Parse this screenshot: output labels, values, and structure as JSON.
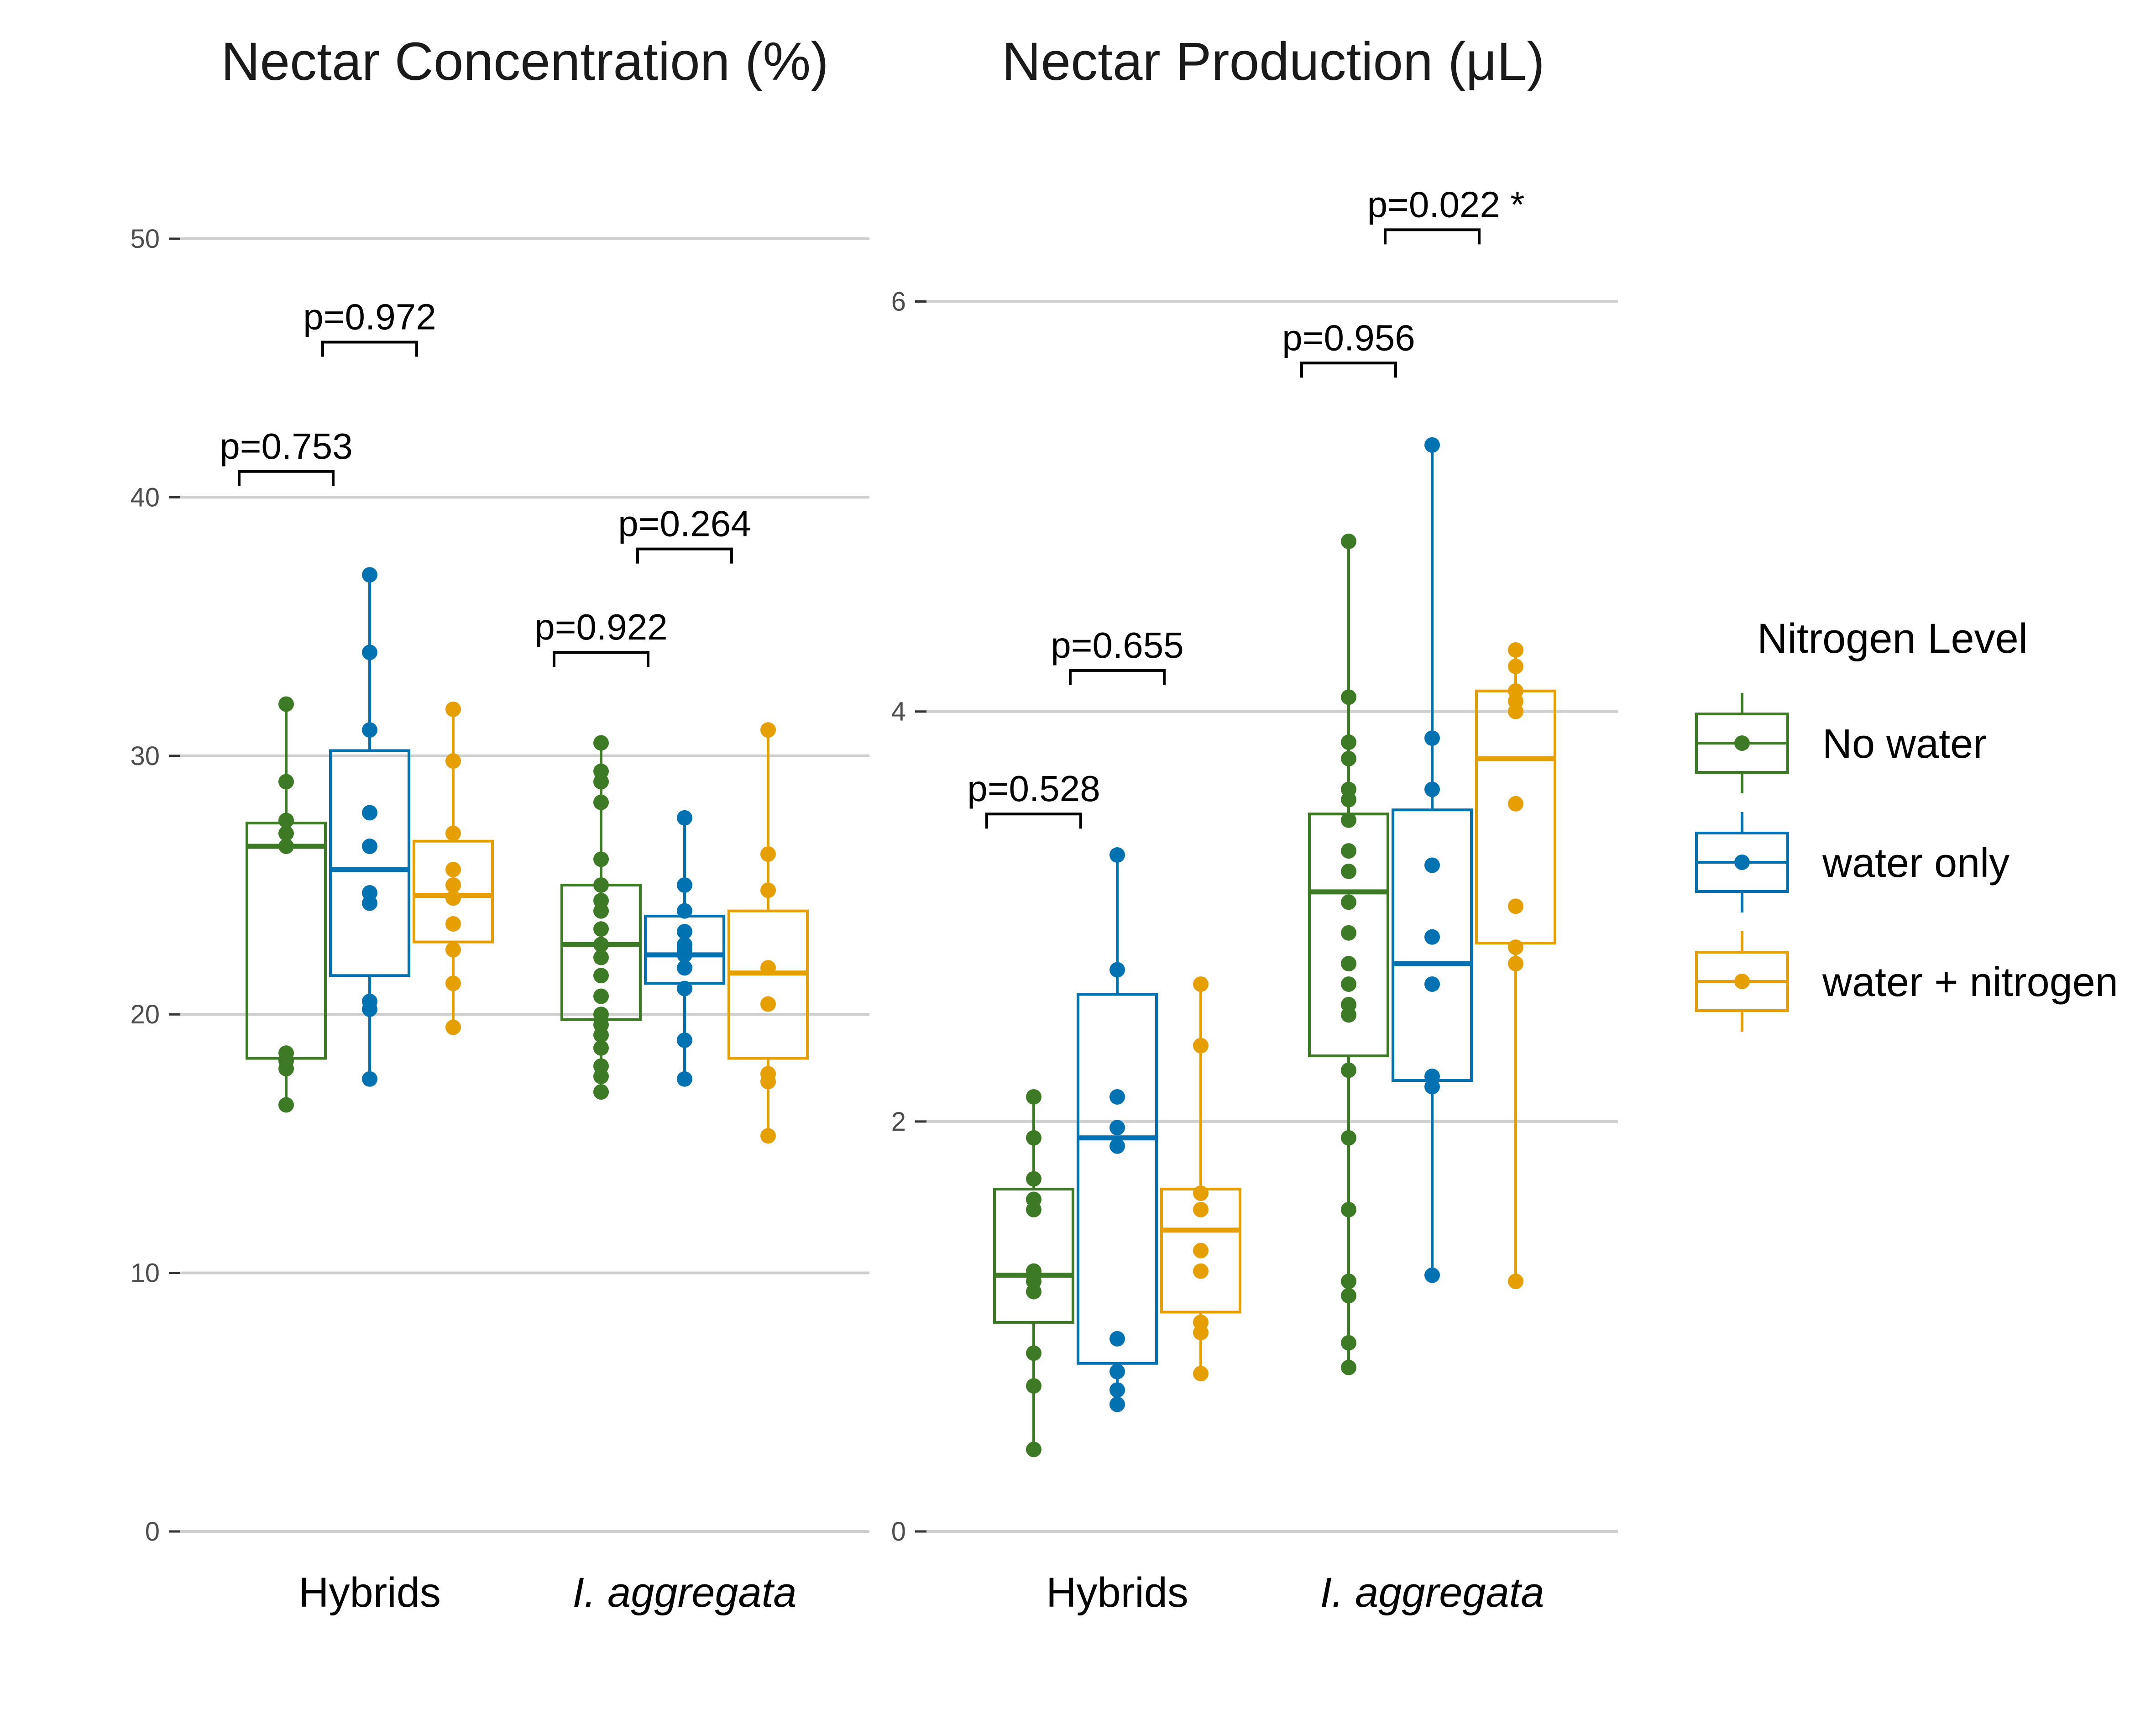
{
  "legend": {
    "title": "Nitrogen Level",
    "position": "right",
    "entries": [
      {
        "label": "No water",
        "color": "#3d7a25"
      },
      {
        "label": "water only",
        "color": "#0072b2"
      },
      {
        "label": "water + nitrogen",
        "color": "#e69f00"
      }
    ]
  },
  "chart_data": [
    {
      "type": "box",
      "title": "Nectar Concentration (%)",
      "xlabel": "",
      "ylabel": "",
      "ylim": [
        0,
        50
      ],
      "yticks": [
        0,
        10,
        20,
        30,
        40,
        50
      ],
      "grid": true,
      "categories": [
        "Hybrids",
        "I. aggregata"
      ],
      "series": [
        {
          "name": "No water",
          "boxes": [
            {
              "q1": 18.3,
              "median": 26.5,
              "q3": 27.4,
              "whisker_low": 16.5,
              "whisker_high": 32.0,
              "points": [
                16.5,
                17.9,
                18.2,
                18.5,
                26.5,
                27.0,
                27.5,
                29.0,
                32.0
              ]
            },
            {
              "q1": 19.8,
              "median": 22.7,
              "q3": 25.0,
              "whisker_low": 17.0,
              "whisker_high": 30.5,
              "points": [
                17.0,
                17.6,
                18.0,
                18.7,
                19.2,
                19.6,
                20.0,
                20.7,
                21.5,
                22.2,
                22.7,
                23.3,
                24.0,
                24.4,
                25.0,
                26.0,
                28.2,
                29.0,
                29.4,
                30.5
              ]
            }
          ]
        },
        {
          "name": "water only",
          "boxes": [
            {
              "q1": 21.5,
              "median": 25.6,
              "q3": 30.2,
              "whisker_low": 17.5,
              "whisker_high": 37.0,
              "points": [
                17.5,
                20.2,
                20.5,
                24.3,
                24.7,
                26.5,
                27.8,
                31.0,
                34.0,
                37.0
              ]
            },
            {
              "q1": 21.2,
              "median": 22.3,
              "q3": 23.8,
              "whisker_low": 17.5,
              "whisker_high": 27.6,
              "points": [
                17.5,
                19.0,
                21.0,
                21.8,
                22.3,
                22.5,
                22.7,
                23.2,
                24.0,
                25.0,
                27.6
              ]
            }
          ]
        },
        {
          "name": "water + nitrogen",
          "boxes": [
            {
              "q1": 22.8,
              "median": 24.6,
              "q3": 26.7,
              "whisker_low": 19.5,
              "whisker_high": 31.8,
              "points": [
                19.5,
                21.2,
                22.5,
                23.5,
                24.5,
                25.0,
                25.6,
                27.0,
                29.8,
                31.8
              ]
            },
            {
              "q1": 18.3,
              "median": 21.6,
              "q3": 24.0,
              "whisker_low": 15.3,
              "whisker_high": 31.0,
              "points": [
                15.3,
                17.4,
                17.7,
                20.4,
                21.8,
                24.8,
                26.2,
                31.0
              ]
            }
          ]
        }
      ],
      "annotations": [
        {
          "text": "p=0.753",
          "category": "Hybrids",
          "from_series": 0,
          "to_series": 1,
          "y": 41.0
        },
        {
          "text": "p=0.972",
          "category": "Hybrids",
          "from_series": 1,
          "to_series": 2,
          "y": 46.0
        },
        {
          "text": "p=0.922",
          "category": "I. aggregata",
          "from_series": 0,
          "to_series": 1,
          "y": 34.0
        },
        {
          "text": "p=0.264",
          "category": "I. aggregata",
          "from_series": 1,
          "to_series": 2,
          "y": 38.0
        }
      ]
    },
    {
      "type": "box",
      "title": "Nectar Production (μL)",
      "xlabel": "",
      "ylabel": "",
      "ylim": [
        0,
        6.5
      ],
      "yticks": [
        0,
        2,
        4,
        6
      ],
      "grid": true,
      "categories": [
        "Hybrids",
        "I. aggregata"
      ],
      "series": [
        {
          "name": "No water",
          "boxes": [
            {
              "q1": 1.02,
              "median": 1.25,
              "q3": 1.67,
              "whisker_low": 0.4,
              "whisker_high": 2.12,
              "points": [
                0.4,
                0.71,
                0.87,
                1.17,
                1.22,
                1.27,
                1.57,
                1.62,
                1.72,
                1.92,
                2.12
              ]
            },
            {
              "q1": 2.32,
              "median": 3.12,
              "q3": 3.5,
              "whisker_low": 0.8,
              "whisker_high": 4.83,
              "points": [
                0.8,
                0.92,
                1.15,
                1.22,
                1.57,
                1.92,
                2.25,
                2.52,
                2.57,
                2.67,
                2.77,
                2.92,
                3.07,
                3.22,
                3.32,
                3.47,
                3.57,
                3.62,
                3.77,
                3.85,
                4.07,
                4.83
              ]
            }
          ]
        },
        {
          "name": "water only",
          "boxes": [
            {
              "q1": 0.82,
              "median": 1.92,
              "q3": 2.62,
              "whisker_low": 0.62,
              "whisker_high": 3.3,
              "points": [
                0.62,
                0.69,
                0.78,
                0.94,
                1.88,
                1.97,
                2.12,
                2.74,
                3.3
              ]
            },
            {
              "q1": 2.2,
              "median": 2.77,
              "q3": 3.52,
              "whisker_low": 1.25,
              "whisker_high": 5.3,
              "points": [
                1.25,
                2.17,
                2.22,
                2.67,
                2.9,
                3.25,
                3.62,
                3.87,
                5.3
              ]
            }
          ]
        },
        {
          "name": "water + nitrogen",
          "boxes": [
            {
              "q1": 1.07,
              "median": 1.47,
              "q3": 1.67,
              "whisker_low": 0.77,
              "whisker_high": 2.67,
              "points": [
                0.77,
                0.97,
                1.02,
                1.27,
                1.37,
                1.57,
                1.65,
                2.37,
                2.67
              ]
            },
            {
              "q1": 2.87,
              "median": 3.77,
              "q3": 4.1,
              "whisker_low": 1.22,
              "whisker_high": 4.3,
              "points": [
                1.22,
                2.77,
                2.85,
                3.05,
                3.55,
                4.0,
                4.05,
                4.1,
                4.22,
                4.3
              ]
            }
          ]
        }
      ],
      "annotations": [
        {
          "text": "p=0.528",
          "category": "Hybrids",
          "from_series": 0,
          "to_series": 1,
          "y": 3.5
        },
        {
          "text": "p=0.655",
          "category": "Hybrids",
          "from_series": 1,
          "to_series": 2,
          "y": 4.2
        },
        {
          "text": "p=0.956",
          "category": "I. aggregata",
          "from_series": 0,
          "to_series": 1,
          "y": 5.7
        },
        {
          "text": "p=0.022 *",
          "category": "I. aggregata",
          "from_series": 1,
          "to_series": 2,
          "y": 6.35
        }
      ]
    }
  ]
}
